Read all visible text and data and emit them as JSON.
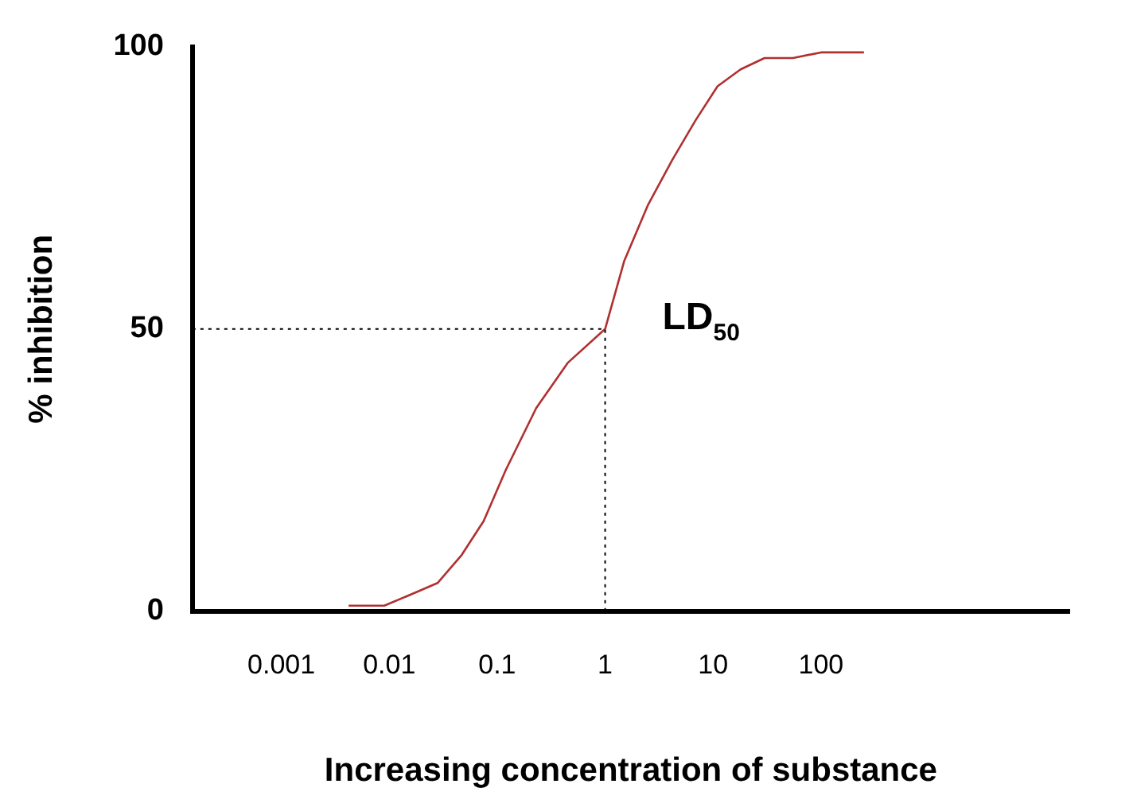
{
  "chart_data": {
    "type": "line",
    "xlabel": "Increasing concentration of substance",
    "ylabel": "% inhibition",
    "x": [
      0.0042,
      0.009,
      0.016,
      0.028,
      0.047,
      0.075,
      0.12,
      0.23,
      0.45,
      1,
      1.5,
      2.5,
      4.2,
      6.9,
      11,
      18,
      30,
      55,
      100,
      250
    ],
    "series": [
      {
        "color": "#b03030",
        "values": [
          1,
          1,
          3,
          5,
          10,
          16,
          25,
          36,
          44,
          50,
          62,
          72,
          80,
          87,
          93,
          96,
          98,
          98,
          99,
          99
        ]
      }
    ],
    "log": "x",
    "xlim": [
      0.00015,
      20000
    ],
    "xticks": [
      0.001,
      0.01,
      0.1,
      1,
      10,
      100
    ],
    "ylim": [
      0,
      100
    ],
    "yticks": [
      0,
      50,
      100
    ],
    "grid": false,
    "legend": false,
    "marker": "none",
    "line_style": "solid",
    "ref_lines": [
      {
        "axis": "y",
        "value": 50,
        "line_style": "dotted"
      },
      {
        "axis": "x",
        "value": 1,
        "line_style": "dotted"
      }
    ],
    "annotations": [
      {
        "text": "LD$_{50}$",
        "x": 1,
        "y": 50
      }
    ]
  }
}
